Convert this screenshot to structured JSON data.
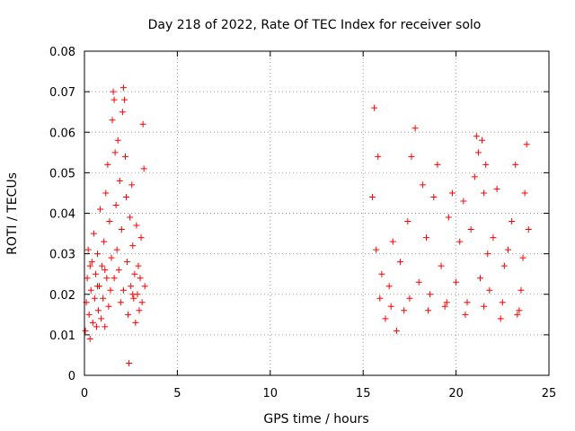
{
  "chart_data": {
    "type": "scatter",
    "title": "Day 218 of 2022, Rate Of TEC Index for receiver solo",
    "xlabel": "GPS time / hours",
    "ylabel": "ROTI / TECUs",
    "xlim": [
      0,
      25
    ],
    "ylim": [
      0,
      0.08
    ],
    "x_ticks": [
      0,
      5,
      10,
      15,
      20,
      25
    ],
    "x_tick_labels": [
      "0",
      "5",
      "10",
      "15",
      "20",
      "25"
    ],
    "y_ticks": [
      0,
      0.01,
      0.02,
      0.03,
      0.04,
      0.05,
      0.06,
      0.07,
      0.08
    ],
    "y_tick_labels": [
      "0",
      "0.01",
      "0.02",
      "0.03",
      "0.04",
      "0.05",
      "0.06",
      "0.07",
      "0.08"
    ],
    "grid": true,
    "marker": "plus",
    "series_color": "#ff0000",
    "series": [
      {
        "points": [
          [
            0.05,
            0.011
          ],
          [
            0.1,
            0.018
          ],
          [
            0.15,
            0.024
          ],
          [
            0.2,
            0.031
          ],
          [
            0.25,
            0.015
          ],
          [
            0.3,
            0.009
          ],
          [
            0.35,
            0.021
          ],
          [
            0.4,
            0.028
          ],
          [
            0.45,
            0.013
          ],
          [
            0.5,
            0.035
          ],
          [
            0.55,
            0.019
          ],
          [
            0.6,
            0.025
          ],
          [
            0.65,
            0.012
          ],
          [
            0.7,
            0.03
          ],
          [
            0.75,
            0.016
          ],
          [
            0.8,
            0.022
          ],
          [
            0.85,
            0.041
          ],
          [
            0.9,
            0.014
          ],
          [
            0.95,
            0.027
          ],
          [
            1.0,
            0.019
          ],
          [
            1.05,
            0.033
          ],
          [
            1.1,
            0.012
          ],
          [
            1.15,
            0.045
          ],
          [
            1.2,
            0.024
          ],
          [
            1.25,
            0.052
          ],
          [
            1.3,
            0.017
          ],
          [
            1.35,
            0.038
          ],
          [
            1.4,
            0.021
          ],
          [
            1.45,
            0.029
          ],
          [
            1.5,
            0.063
          ],
          [
            1.55,
            0.07
          ],
          [
            1.6,
            0.068
          ],
          [
            1.65,
            0.055
          ],
          [
            1.7,
            0.042
          ],
          [
            1.75,
            0.031
          ],
          [
            1.8,
            0.058
          ],
          [
            1.85,
            0.026
          ],
          [
            1.9,
            0.048
          ],
          [
            1.95,
            0.018
          ],
          [
            2.0,
            0.036
          ],
          [
            2.05,
            0.065
          ],
          [
            2.1,
            0.071
          ],
          [
            2.15,
            0.068
          ],
          [
            2.2,
            0.054
          ],
          [
            2.25,
            0.044
          ],
          [
            2.3,
            0.028
          ],
          [
            2.35,
            0.015
          ],
          [
            2.4,
            0.003
          ],
          [
            2.45,
            0.039
          ],
          [
            2.5,
            0.022
          ],
          [
            2.55,
            0.047
          ],
          [
            2.6,
            0.032
          ],
          [
            2.65,
            0.019
          ],
          [
            2.7,
            0.025
          ],
          [
            2.75,
            0.013
          ],
          [
            2.8,
            0.037
          ],
          [
            2.85,
            0.02
          ],
          [
            2.9,
            0.027
          ],
          [
            2.95,
            0.016
          ],
          [
            3.0,
            0.024
          ],
          [
            3.05,
            0.034
          ],
          [
            3.1,
            0.018
          ],
          [
            3.15,
            0.062
          ],
          [
            3.2,
            0.051
          ],
          [
            3.25,
            0.022
          ],
          [
            0.3,
            0.027
          ],
          [
            0.7,
            0.022
          ],
          [
            1.1,
            0.026
          ],
          [
            1.6,
            0.024
          ],
          [
            2.1,
            0.021
          ],
          [
            2.6,
            0.02
          ],
          [
            15.5,
            0.044
          ],
          [
            15.6,
            0.066
          ],
          [
            15.7,
            0.031
          ],
          [
            15.8,
            0.054
          ],
          [
            15.9,
            0.019
          ],
          [
            16.0,
            0.025
          ],
          [
            16.2,
            0.014
          ],
          [
            16.4,
            0.022
          ],
          [
            16.6,
            0.033
          ],
          [
            16.8,
            0.011
          ],
          [
            17.0,
            0.028
          ],
          [
            17.2,
            0.016
          ],
          [
            17.4,
            0.038
          ],
          [
            17.6,
            0.054
          ],
          [
            17.8,
            0.061
          ],
          [
            18.0,
            0.023
          ],
          [
            18.2,
            0.047
          ],
          [
            18.4,
            0.034
          ],
          [
            18.6,
            0.02
          ],
          [
            18.8,
            0.044
          ],
          [
            19.0,
            0.052
          ],
          [
            19.2,
            0.027
          ],
          [
            19.4,
            0.017
          ],
          [
            19.6,
            0.039
          ],
          [
            19.8,
            0.045
          ],
          [
            20.0,
            0.023
          ],
          [
            20.2,
            0.033
          ],
          [
            20.4,
            0.043
          ],
          [
            20.6,
            0.018
          ],
          [
            20.8,
            0.036
          ],
          [
            21.0,
            0.049
          ],
          [
            21.1,
            0.059
          ],
          [
            21.2,
            0.055
          ],
          [
            21.3,
            0.024
          ],
          [
            21.4,
            0.058
          ],
          [
            21.5,
            0.045
          ],
          [
            21.6,
            0.052
          ],
          [
            21.7,
            0.03
          ],
          [
            21.8,
            0.021
          ],
          [
            22.0,
            0.034
          ],
          [
            22.2,
            0.046
          ],
          [
            22.4,
            0.014
          ],
          [
            22.6,
            0.027
          ],
          [
            22.8,
            0.031
          ],
          [
            23.0,
            0.038
          ],
          [
            23.2,
            0.052
          ],
          [
            23.4,
            0.016
          ],
          [
            23.5,
            0.021
          ],
          [
            23.6,
            0.029
          ],
          [
            23.7,
            0.045
          ],
          [
            23.8,
            0.057
          ],
          [
            23.9,
            0.036
          ],
          [
            16.5,
            0.017
          ],
          [
            17.5,
            0.019
          ],
          [
            18.5,
            0.016
          ],
          [
            19.5,
            0.018
          ],
          [
            20.5,
            0.015
          ],
          [
            21.5,
            0.017
          ],
          [
            22.5,
            0.018
          ],
          [
            23.3,
            0.015
          ]
        ]
      }
    ]
  }
}
